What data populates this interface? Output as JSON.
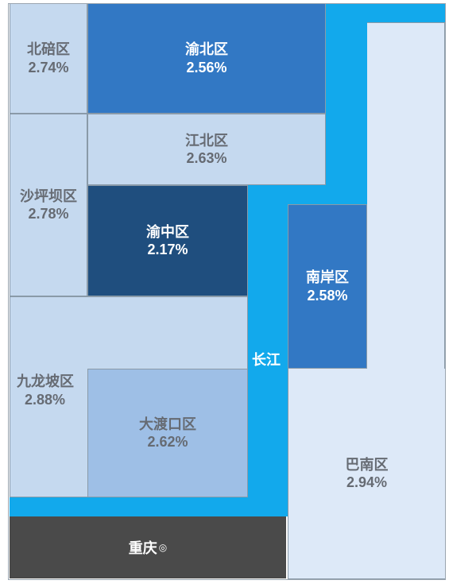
{
  "districts": {
    "beibei": {
      "name": "北碚区",
      "value": "2.74%"
    },
    "yubei": {
      "name": "渝北区",
      "value": "2.56%"
    },
    "jiangbei": {
      "name": "江北区",
      "value": "2.63%"
    },
    "shapingba": {
      "name": "沙坪坝区",
      "value": "2.78%"
    },
    "yuzhong": {
      "name": "渝中区",
      "value": "2.17%"
    },
    "nanan": {
      "name": "南岸区",
      "value": "2.58%"
    },
    "jiulongpo": {
      "name": "九龙坡区",
      "value": "2.88%"
    },
    "dadukou": {
      "name": "大渡口区",
      "value": "2.62%"
    },
    "banan": {
      "name": "巴南区",
      "value": "2.94%"
    }
  },
  "river": {
    "label": "长江"
  },
  "city": {
    "label": "重庆",
    "mark": "◎"
  },
  "colors": {
    "river": "#12a9ec",
    "dark_blue": "#1f4e7e",
    "blue": "#3278c4",
    "light_blue": "#c5d9ef",
    "pale_blue": "#dde9f8",
    "city_gray": "#4a4a4a"
  }
}
